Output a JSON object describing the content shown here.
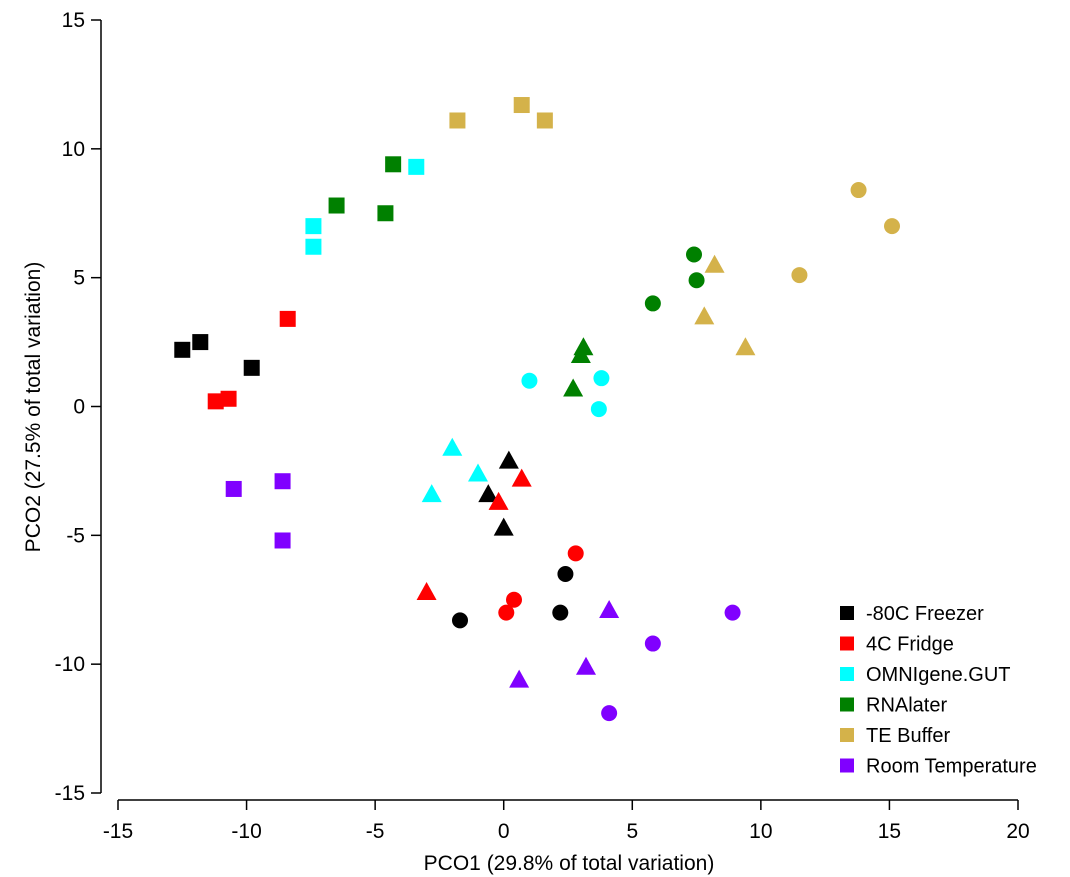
{
  "chart_data": {
    "type": "scatter",
    "xlabel": "PCO1 (29.8% of total variation)",
    "ylabel": "PCO2 (27.5% of total variation)",
    "xlim": [
      -15,
      20
    ],
    "ylim": [
      -15,
      15
    ],
    "xticks": [
      -15,
      -10,
      -5,
      0,
      5,
      10,
      15,
      20
    ],
    "yticks": [
      -15,
      -10,
      -5,
      0,
      5,
      10,
      15
    ],
    "xtick_labels": [
      "-15",
      "-10",
      "-5",
      "0",
      "5",
      "10",
      "15",
      "20"
    ],
    "ytick_labels": [
      "-15",
      "-10",
      "-5",
      "0",
      "5",
      "10",
      "15"
    ],
    "grid": false,
    "legend_position": "bottom-right",
    "legend_marker": "square",
    "series": [
      {
        "name": "-80C Freezer",
        "color": "#000000",
        "points": [
          {
            "x": -12.5,
            "y": 2.2,
            "marker": "square"
          },
          {
            "x": -11.8,
            "y": 2.5,
            "marker": "square"
          },
          {
            "x": -9.8,
            "y": 1.5,
            "marker": "square"
          },
          {
            "x": 0.2,
            "y": -2.1,
            "marker": "triangle"
          },
          {
            "x": -0.6,
            "y": -3.4,
            "marker": "triangle"
          },
          {
            "x": 0.0,
            "y": -4.7,
            "marker": "triangle"
          },
          {
            "x": -1.7,
            "y": -8.3,
            "marker": "circle"
          },
          {
            "x": 2.2,
            "y": -8.0,
            "marker": "circle"
          },
          {
            "x": 2.4,
            "y": -6.5,
            "marker": "circle"
          }
        ]
      },
      {
        "name": "4C Fridge",
        "color": "#ff0000",
        "points": [
          {
            "x": -11.2,
            "y": 0.2,
            "marker": "square"
          },
          {
            "x": -10.7,
            "y": 0.3,
            "marker": "square"
          },
          {
            "x": -8.4,
            "y": 3.4,
            "marker": "square"
          },
          {
            "x": 0.7,
            "y": -2.8,
            "marker": "triangle"
          },
          {
            "x": -0.2,
            "y": -3.7,
            "marker": "triangle"
          },
          {
            "x": -3.0,
            "y": -7.2,
            "marker": "triangle"
          },
          {
            "x": 0.4,
            "y": -7.5,
            "marker": "circle"
          },
          {
            "x": 0.1,
            "y": -8.0,
            "marker": "circle"
          },
          {
            "x": 2.8,
            "y": -5.7,
            "marker": "circle"
          }
        ]
      },
      {
        "name": "OMNIgene.GUT",
        "color": "#00ffff",
        "points": [
          {
            "x": -7.4,
            "y": 7.0,
            "marker": "square"
          },
          {
            "x": -7.4,
            "y": 6.2,
            "marker": "square"
          },
          {
            "x": -3.4,
            "y": 9.3,
            "marker": "square"
          },
          {
            "x": -2.0,
            "y": -1.6,
            "marker": "triangle"
          },
          {
            "x": -1.0,
            "y": -2.6,
            "marker": "triangle"
          },
          {
            "x": -2.8,
            "y": -3.4,
            "marker": "triangle"
          },
          {
            "x": 1.0,
            "y": 1.0,
            "marker": "circle"
          },
          {
            "x": 3.8,
            "y": 1.1,
            "marker": "circle"
          },
          {
            "x": 3.7,
            "y": -0.1,
            "marker": "circle"
          }
        ]
      },
      {
        "name": "RNAlater",
        "color": "#008000",
        "points": [
          {
            "x": -6.5,
            "y": 7.8,
            "marker": "square"
          },
          {
            "x": -4.6,
            "y": 7.5,
            "marker": "square"
          },
          {
            "x": -4.3,
            "y": 9.4,
            "marker": "square"
          },
          {
            "x": 3.1,
            "y": 2.3,
            "marker": "triangle"
          },
          {
            "x": 3.0,
            "y": 2.0,
            "marker": "triangle"
          },
          {
            "x": 2.7,
            "y": 0.7,
            "marker": "triangle"
          },
          {
            "x": 5.8,
            "y": 4.0,
            "marker": "circle"
          },
          {
            "x": 7.4,
            "y": 5.9,
            "marker": "circle"
          },
          {
            "x": 7.5,
            "y": 4.9,
            "marker": "circle"
          }
        ]
      },
      {
        "name": "TE Buffer",
        "color": "#d4b24a",
        "points": [
          {
            "x": -1.8,
            "y": 11.1,
            "marker": "square"
          },
          {
            "x": 0.7,
            "y": 11.7,
            "marker": "square"
          },
          {
            "x": 1.6,
            "y": 11.1,
            "marker": "square"
          },
          {
            "x": 8.2,
            "y": 5.5,
            "marker": "triangle"
          },
          {
            "x": 7.8,
            "y": 3.5,
            "marker": "triangle"
          },
          {
            "x": 9.4,
            "y": 2.3,
            "marker": "triangle"
          },
          {
            "x": 11.5,
            "y": 5.1,
            "marker": "circle"
          },
          {
            "x": 13.8,
            "y": 8.4,
            "marker": "circle"
          },
          {
            "x": 15.1,
            "y": 7.0,
            "marker": "circle"
          }
        ]
      },
      {
        "name": "Room Temperature",
        "color": "#8000ff",
        "points": [
          {
            "x": -10.5,
            "y": -3.2,
            "marker": "square"
          },
          {
            "x": -8.6,
            "y": -2.9,
            "marker": "square"
          },
          {
            "x": -8.6,
            "y": -5.2,
            "marker": "square"
          },
          {
            "x": 4.1,
            "y": -7.9,
            "marker": "triangle"
          },
          {
            "x": 3.2,
            "y": -10.1,
            "marker": "triangle"
          },
          {
            "x": 0.6,
            "y": -10.6,
            "marker": "triangle"
          },
          {
            "x": 5.8,
            "y": -9.2,
            "marker": "circle"
          },
          {
            "x": 8.9,
            "y": -8.0,
            "marker": "circle"
          },
          {
            "x": 4.1,
            "y": -11.9,
            "marker": "circle"
          }
        ]
      }
    ]
  }
}
